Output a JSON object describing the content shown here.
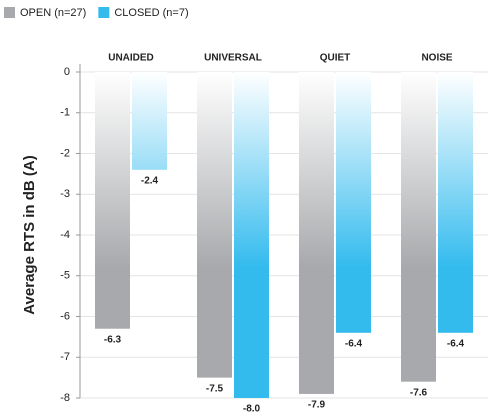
{
  "chart_data": {
    "type": "bar",
    "categories": [
      "UNAIDED",
      "UNIVERSAL",
      "QUIET",
      "NOISE"
    ],
    "y_label": "Average RTS in dB (A)",
    "series": [
      {
        "name": "OPEN (n=27)",
        "color": "#a7a9ac",
        "values": [
          -6.3,
          -7.5,
          -7.9,
          -7.6
        ],
        "value_labels": [
          "-6.3",
          "-7.5",
          "-7.9",
          "-7.6"
        ]
      },
      {
        "name": "CLOSED (n=7)",
        "color": "#33bbee",
        "values": [
          -2.4,
          -8.0,
          -6.4,
          -6.4
        ],
        "value_labels": [
          "-2.4",
          "-8.0",
          "-6.4",
          "-6.4"
        ]
      }
    ],
    "ylim": [
      -8,
      0
    ],
    "yticks": [
      0,
      -1,
      -2,
      -3,
      -4,
      -5,
      -6,
      -7,
      -8
    ],
    "grid": true
  }
}
